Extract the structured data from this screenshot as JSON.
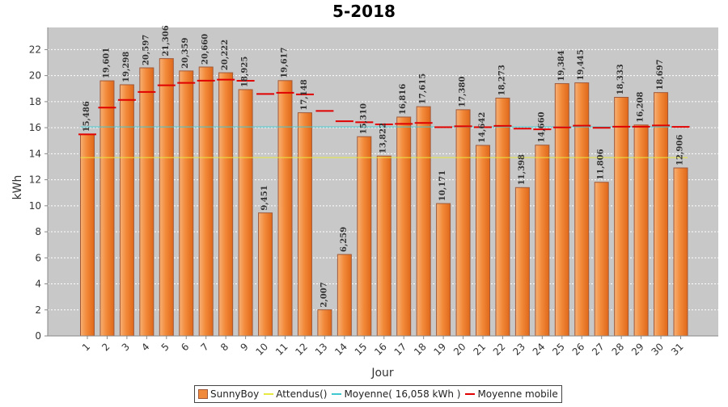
{
  "chart_data": {
    "type": "bar",
    "title": "5-2018",
    "xlabel": "Jour",
    "ylabel": "kWh",
    "ylim": [
      0,
      23.7
    ],
    "yticks": [
      0,
      2,
      4,
      6,
      8,
      10,
      12,
      14,
      16,
      18,
      20,
      22
    ],
    "grid": true,
    "legend_position": "bottom",
    "categories": [
      "1",
      "2",
      "3",
      "4",
      "5",
      "6",
      "7",
      "8",
      "9",
      "10",
      "11",
      "12",
      "13",
      "14",
      "15",
      "16",
      "17",
      "18",
      "19",
      "20",
      "21",
      "22",
      "23",
      "24",
      "25",
      "26",
      "27",
      "28",
      "29",
      "30",
      "31"
    ],
    "series": [
      {
        "name": "SunnyBoy",
        "kind": "bar",
        "color": "#f08a3a",
        "values": [
          15.486,
          19.601,
          19.298,
          20.597,
          21.306,
          20.359,
          20.66,
          20.222,
          18.925,
          9.451,
          19.617,
          17.148,
          2.007,
          6.259,
          15.31,
          13.822,
          16.816,
          17.615,
          10.171,
          17.38,
          14.642,
          18.273,
          11.398,
          14.66,
          19.384,
          19.445,
          11.806,
          18.333,
          16.208,
          18.697,
          12.906
        ],
        "labels": [
          "15,486",
          "19,601",
          "19,298",
          "20,597",
          "21,306",
          "20,359",
          "20,660",
          "20,222",
          "18,925",
          "9,451",
          "19,617",
          "17,148",
          "2,007",
          "6,259",
          "15,310",
          "13,822",
          "16,816",
          "17,615",
          "10,171",
          "17,380",
          "14,642",
          "18,273",
          "11,398",
          "14,660",
          "19,384",
          "19,445",
          "11,806",
          "18,333",
          "16,208",
          "18,697",
          "12,906"
        ]
      },
      {
        "name": "Attendus()",
        "kind": "hline",
        "color": "#e8e840",
        "value": 13.7
      },
      {
        "name": "Moyenne( 16,058 kWh )",
        "kind": "hline",
        "color": "#40c8d0",
        "value": 16.058
      },
      {
        "name": "Moyenne mobile",
        "kind": "step",
        "color": "#e00000",
        "values": [
          15.486,
          17.544,
          18.128,
          18.746,
          19.258,
          19.441,
          19.615,
          19.691,
          19.607,
          18.592,
          18.686,
          18.558,
          17.285,
          16.497,
          16.418,
          16.256,
          16.291,
          16.365,
          16.038,
          16.105,
          16.035,
          16.137,
          15.931,
          15.878,
          16.02,
          16.152,
          15.991,
          16.075,
          16.08,
          16.167,
          16.058
        ]
      }
    ]
  },
  "legend": [
    {
      "label": "SunnyBoy",
      "color": "#f08a3a",
      "kind": "box"
    },
    {
      "label": "Attendus()",
      "color": "#e8e840",
      "kind": "line"
    },
    {
      "label": "Moyenne( 16,058 kWh )",
      "color": "#40c8d0",
      "kind": "line"
    },
    {
      "label": "Moyenne mobile",
      "color": "#e00000",
      "kind": "line"
    }
  ]
}
